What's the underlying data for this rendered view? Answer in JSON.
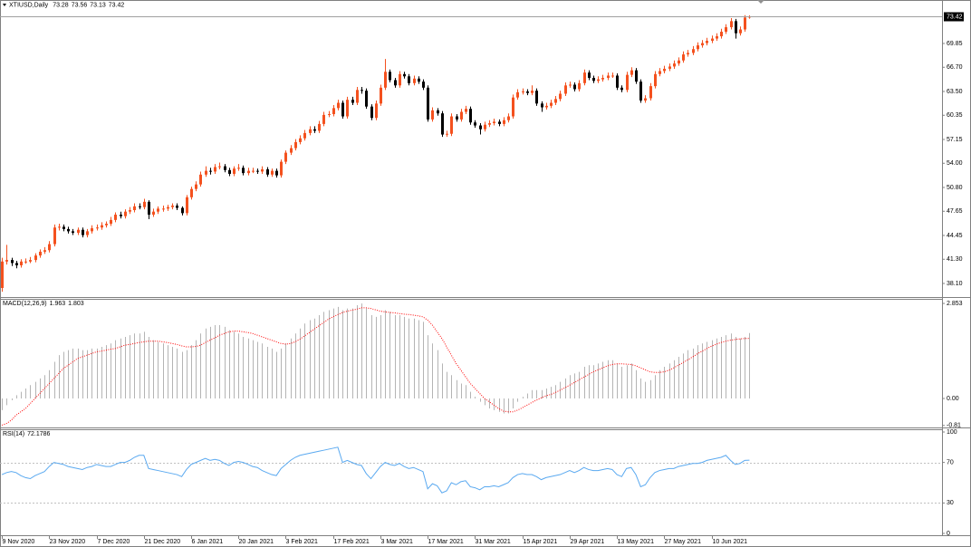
{
  "chart_data": [
    {
      "type": "candlestick",
      "title": "XTIUSD,Daily",
      "up_color": "#f4511e",
      "down_color": "#000000",
      "xlim": [
        -0.4,
        198.7
      ],
      "xticks": [
        {
          "value": 0,
          "label": "9 Nov 2020"
        },
        {
          "value": 10,
          "label": "23 Nov 2020"
        },
        {
          "value": 20,
          "label": "7 Dec 2020"
        },
        {
          "value": 30,
          "label": "21 Dec 2020"
        },
        {
          "value": 40,
          "label": "6 Jan 2021"
        },
        {
          "value": 50,
          "label": "20 Jan 2021"
        },
        {
          "value": 60,
          "label": "3 Feb 2021"
        },
        {
          "value": 70,
          "label": "17 Feb 2021"
        },
        {
          "value": 80,
          "label": "3 Mar 2021"
        },
        {
          "value": 90,
          "label": "17 Mar 2021"
        },
        {
          "value": 100,
          "label": "31 Mar 2021"
        },
        {
          "value": 110,
          "label": "15 Apr 2021"
        },
        {
          "value": 120,
          "label": "29 Apr 2021"
        },
        {
          "value": 130,
          "label": "13 May 2021"
        },
        {
          "value": 140,
          "label": "27 May 2021"
        },
        {
          "value": 150,
          "label": "10 Jun 2021"
        }
      ],
      "ylim": [
        36.3,
        75.6
      ],
      "yticks": [
        {
          "value": 38.1,
          "label": "38.10"
        },
        {
          "value": 41.3,
          "label": "41.30"
        },
        44.45,
        47.65,
        {
          "value": 50.8,
          "label": "50.80"
        },
        {
          "value": 54,
          "label": "54.00"
        },
        57.15,
        60.35,
        {
          "value": 63.5,
          "label": "63.50"
        },
        {
          "value": 66.7,
          "label": "66.70"
        },
        69.85
      ],
      "open": [
        37.5,
        41.0,
        41.2,
        40.8,
        40.5,
        41.0,
        41.0,
        41.2,
        41.8,
        42.3,
        42.5,
        43.3,
        45.5,
        45.6,
        45.3,
        45.0,
        44.8,
        45.2,
        44.5,
        45.0,
        45.4,
        45.5,
        45.8,
        46.0,
        46.5,
        47.2,
        47.0,
        47.6,
        47.8,
        48.3,
        48.2,
        48.9,
        47.2,
        47.6,
        48.0,
        48.0,
        48.2,
        48.4,
        48.1,
        47.4,
        49.5,
        50.6,
        51.2,
        52.5,
        53.0,
        52.9,
        53.5,
        53.6,
        53.1,
        52.6,
        53.3,
        53.4,
        52.7,
        53.0,
        53.0,
        52.9,
        53.2,
        52.5,
        53.0,
        52.4,
        54.2,
        55.4,
        56.0,
        56.8,
        57.3,
        58.0,
        58.5,
        58.3,
        59.2,
        60.4,
        60.5,
        61.3,
        62.0,
        60.2,
        62.4,
        62.0,
        63.7,
        63.6,
        61.5,
        60.0,
        61.9,
        64.0,
        66.1,
        65.0,
        64.3,
        65.8,
        65.5,
        64.6,
        65.2,
        64.8,
        64.0,
        59.8,
        61.0,
        60.6,
        57.8,
        57.9,
        60.2,
        59.8,
        60.8,
        61.2,
        59.4,
        59.0,
        58.5,
        59.1,
        59.3,
        59.5,
        59.2,
        59.7,
        60.2,
        62.7,
        63.4,
        63.5,
        63.3,
        63.6,
        61.9,
        61.4,
        61.6,
        62.0,
        62.5,
        63.2,
        64.3,
        64.4,
        63.8,
        64.6,
        66.0,
        65.3,
        64.9,
        65.1,
        65.3,
        65.6,
        65.6,
        64.0,
        63.7,
        65.7,
        66.3,
        64.8,
        62.3,
        62.6,
        64.2,
        65.8,
        66.2,
        66.5,
        66.8,
        67.2,
        67.6,
        68.4,
        68.6,
        69.1,
        69.6,
        69.9,
        70.2,
        70.5,
        70.8,
        71.4,
        72.0,
        72.8,
        71.2,
        71.7,
        73.28
      ],
      "high": [
        41.5,
        43.2,
        41.5,
        41.1,
        41.3,
        41.4,
        41.6,
        42.1,
        42.6,
        42.9,
        43.7,
        45.9,
        46.0,
        45.9,
        45.6,
        45.3,
        45.5,
        45.5,
        45.3,
        45.8,
        45.9,
        46.2,
        46.3,
        46.9,
        47.5,
        47.6,
        47.9,
        48.2,
        48.7,
        48.7,
        49.3,
        49.1,
        48.0,
        48.3,
        48.4,
        48.5,
        48.7,
        48.7,
        48.3,
        49.8,
        50.9,
        51.6,
        52.9,
        53.6,
        53.4,
        53.9,
        54.1,
        53.9,
        53.4,
        53.6,
        53.9,
        53.7,
        53.4,
        53.4,
        53.3,
        53.6,
        53.5,
        53.3,
        53.3,
        54.5,
        55.7,
        56.4,
        57.2,
        57.7,
        58.4,
        58.9,
        58.9,
        59.6,
        60.8,
        60.9,
        61.7,
        62.4,
        62.3,
        62.8,
        62.8,
        64.1,
        64.1,
        63.9,
        61.8,
        62.3,
        64.4,
        67.8,
        66.4,
        65.3,
        66.2,
        66.1,
        65.8,
        65.6,
        65.5,
        65.1,
        64.3,
        61.4,
        61.3,
        60.9,
        58.3,
        60.6,
        60.5,
        61.2,
        61.6,
        61.5,
        59.7,
        59.3,
        59.5,
        59.7,
        59.9,
        59.8,
        60.1,
        60.6,
        63.1,
        63.8,
        63.9,
        63.8,
        64.3,
        63.9,
        62.2,
        62.0,
        62.4,
        62.9,
        63.6,
        64.7,
        64.8,
        64.7,
        65.0,
        66.4,
        66.3,
        65.6,
        65.5,
        65.7,
        66.0,
        66.0,
        65.9,
        64.3,
        66.1,
        66.7,
        66.6,
        65.1,
        63.0,
        64.6,
        66.2,
        66.6,
        66.9,
        67.2,
        67.6,
        68.0,
        68.8,
        69.0,
        69.5,
        70.0,
        70.3,
        70.6,
        70.9,
        71.2,
        71.8,
        72.4,
        73.2,
        73.1,
        72.1,
        73.6,
        73.56
      ],
      "low": [
        37.0,
        40.6,
        40.4,
        40.1,
        40.2,
        40.7,
        40.8,
        40.9,
        41.5,
        42.0,
        42.2,
        43.0,
        45.1,
        45.0,
        44.7,
        44.5,
        44.5,
        44.2,
        44.2,
        44.7,
        45.1,
        45.2,
        45.5,
        45.7,
        46.2,
        46.7,
        46.7,
        47.3,
        47.5,
        47.9,
        47.9,
        46.6,
        46.9,
        47.3,
        47.6,
        47.7,
        47.9,
        47.8,
        47.1,
        47.1,
        49.2,
        50.3,
        50.9,
        52.2,
        52.5,
        52.6,
        53.2,
        52.8,
        52.3,
        52.3,
        53.0,
        52.4,
        52.4,
        52.7,
        52.6,
        52.6,
        52.2,
        52.2,
        52.1,
        52.1,
        53.9,
        55.1,
        55.7,
        56.5,
        57.0,
        57.7,
        58.0,
        58.0,
        58.9,
        60.1,
        60.2,
        61.0,
        59.9,
        59.9,
        61.7,
        61.7,
        63.2,
        61.2,
        59.7,
        59.7,
        61.6,
        63.7,
        64.7,
        64.0,
        64.0,
        65.2,
        64.3,
        64.3,
        64.5,
        63.7,
        59.5,
        59.5,
        60.3,
        57.5,
        57.5,
        57.6,
        59.5,
        59.5,
        60.5,
        59.1,
        58.7,
        57.8,
        58.2,
        58.8,
        59.0,
        58.9,
        58.9,
        59.4,
        59.9,
        62.4,
        63.1,
        63.0,
        63.0,
        61.6,
        60.8,
        61.1,
        61.3,
        61.7,
        62.2,
        62.9,
        64.0,
        63.5,
        63.5,
        64.3,
        65.0,
        64.6,
        64.6,
        64.8,
        65.0,
        65.3,
        63.7,
        63.4,
        63.4,
        65.4,
        64.5,
        62.0,
        62.0,
        62.3,
        63.9,
        65.5,
        65.9,
        66.2,
        66.5,
        66.9,
        67.3,
        68.1,
        68.3,
        68.8,
        69.3,
        69.6,
        69.9,
        70.2,
        70.5,
        71.1,
        71.7,
        70.5,
        70.9,
        71.4,
        73.13
      ],
      "close": [
        41.0,
        41.2,
        40.8,
        40.5,
        41.0,
        41.0,
        41.2,
        41.8,
        42.3,
        42.5,
        43.3,
        45.5,
        45.6,
        45.3,
        45.0,
        44.8,
        45.2,
        44.5,
        45.0,
        45.4,
        45.5,
        45.8,
        46.0,
        46.5,
        47.2,
        47.0,
        47.6,
        47.8,
        48.3,
        48.2,
        48.9,
        47.2,
        47.6,
        48.0,
        48.0,
        48.2,
        48.4,
        48.1,
        47.4,
        49.5,
        50.6,
        51.2,
        52.5,
        53.0,
        52.9,
        53.5,
        53.6,
        53.1,
        52.6,
        53.3,
        53.4,
        52.7,
        53.0,
        53.0,
        52.9,
        53.2,
        52.5,
        53.0,
        52.4,
        54.2,
        55.4,
        56.0,
        56.8,
        57.3,
        58.0,
        58.5,
        58.3,
        59.2,
        60.4,
        60.5,
        61.3,
        62.0,
        60.2,
        62.4,
        62.0,
        63.7,
        63.6,
        61.5,
        60.0,
        61.9,
        64.0,
        66.1,
        65.0,
        64.3,
        65.8,
        65.5,
        64.6,
        65.2,
        64.8,
        64.0,
        59.8,
        61.0,
        60.6,
        57.8,
        57.9,
        60.2,
        59.8,
        60.8,
        61.2,
        59.4,
        59.0,
        58.5,
        59.1,
        59.3,
        59.5,
        59.2,
        59.7,
        60.2,
        62.7,
        63.4,
        63.5,
        63.3,
        63.6,
        61.9,
        61.4,
        61.6,
        62.0,
        62.5,
        63.2,
        64.3,
        64.4,
        63.8,
        64.6,
        66.0,
        65.3,
        64.9,
        65.1,
        65.3,
        65.6,
        65.6,
        64.0,
        63.7,
        65.7,
        66.3,
        64.8,
        62.3,
        62.6,
        64.2,
        65.8,
        66.2,
        66.5,
        66.8,
        67.2,
        67.6,
        68.4,
        68.6,
        69.1,
        69.6,
        69.9,
        70.2,
        70.5,
        70.8,
        71.4,
        72.0,
        72.8,
        71.2,
        71.7,
        73.28,
        73.42
      ]
    },
    {
      "type": "macd",
      "title": "MACD(12,26,9)",
      "ylim": [
        -0.87,
        2.99
      ],
      "yticks": [
        2.853,
        {
          "value": 0,
          "label": "0.00"
        },
        -0.81
      ],
      "histogram": {
        "color": "#b4b4b4",
        "values": [
          -0.35,
          -0.2,
          -0.05,
          0.1,
          0.2,
          0.3,
          0.4,
          0.5,
          0.6,
          0.7,
          0.85,
          1.1,
          1.3,
          1.4,
          1.45,
          1.5,
          1.5,
          1.45,
          1.45,
          1.5,
          1.5,
          1.55,
          1.6,
          1.65,
          1.75,
          1.8,
          1.85,
          1.9,
          1.95,
          1.95,
          2.0,
          1.85,
          1.75,
          1.7,
          1.65,
          1.6,
          1.55,
          1.5,
          1.4,
          1.45,
          1.6,
          1.75,
          1.95,
          2.1,
          2.15,
          2.2,
          2.2,
          2.15,
          2.05,
          2.0,
          1.95,
          1.85,
          1.8,
          1.75,
          1.7,
          1.65,
          1.55,
          1.5,
          1.4,
          1.5,
          1.65,
          1.8,
          1.95,
          2.1,
          2.25,
          2.35,
          2.4,
          2.5,
          2.6,
          2.65,
          2.7,
          2.75,
          2.65,
          2.7,
          2.7,
          2.8,
          2.85,
          2.7,
          2.5,
          2.45,
          2.5,
          2.65,
          2.6,
          2.5,
          2.5,
          2.45,
          2.4,
          2.4,
          2.35,
          2.3,
          1.9,
          1.65,
          1.45,
          1.05,
          0.8,
          0.7,
          0.55,
          0.45,
          0.4,
          0.2,
          0.05,
          -0.1,
          -0.2,
          -0.3,
          -0.35,
          -0.4,
          -0.45,
          -0.45,
          -0.3,
          -0.1,
          0.05,
          0.15,
          0.25,
          0.25,
          0.25,
          0.3,
          0.35,
          0.4,
          0.5,
          0.6,
          0.7,
          0.75,
          0.8,
          0.95,
          1.0,
          1.0,
          1.05,
          1.1,
          1.15,
          1.15,
          1.05,
          0.95,
          1.0,
          1.05,
          0.85,
          0.6,
          0.5,
          0.55,
          0.7,
          0.85,
          0.95,
          1.05,
          1.15,
          1.25,
          1.35,
          1.45,
          1.5,
          1.6,
          1.65,
          1.7,
          1.75,
          1.8,
          1.85,
          1.9,
          1.95,
          1.85,
          1.8,
          1.85,
          1.963
        ]
      },
      "signal": {
        "color": "#ff0000",
        "values": [
          -0.8,
          -0.75,
          -0.65,
          -0.5,
          -0.4,
          -0.3,
          -0.15,
          0.0,
          0.15,
          0.3,
          0.45,
          0.6,
          0.75,
          0.9,
          1.0,
          1.1,
          1.2,
          1.25,
          1.3,
          1.35,
          1.4,
          1.42,
          1.45,
          1.48,
          1.5,
          1.55,
          1.6,
          1.62,
          1.65,
          1.68,
          1.7,
          1.72,
          1.72,
          1.72,
          1.7,
          1.68,
          1.65,
          1.62,
          1.58,
          1.55,
          1.55,
          1.56,
          1.6,
          1.68,
          1.75,
          1.82,
          1.9,
          1.95,
          2.0,
          2.02,
          2.02,
          2.0,
          1.98,
          1.95,
          1.9,
          1.85,
          1.8,
          1.75,
          1.7,
          1.65,
          1.63,
          1.65,
          1.7,
          1.78,
          1.88,
          1.98,
          2.08,
          2.18,
          2.28,
          2.38,
          2.45,
          2.52,
          2.58,
          2.62,
          2.65,
          2.68,
          2.72,
          2.72,
          2.7,
          2.66,
          2.62,
          2.6,
          2.58,
          2.57,
          2.55,
          2.53,
          2.52,
          2.5,
          2.48,
          2.45,
          2.35,
          2.2,
          2.0,
          1.8,
          1.55,
          1.3,
          1.05,
          0.85,
          0.65,
          0.45,
          0.3,
          0.15,
          0.0,
          -0.1,
          -0.2,
          -0.3,
          -0.38,
          -0.4,
          -0.4,
          -0.35,
          -0.28,
          -0.2,
          -0.12,
          -0.05,
          0.02,
          0.08,
          0.12,
          0.18,
          0.25,
          0.32,
          0.4,
          0.48,
          0.56,
          0.64,
          0.72,
          0.8,
          0.86,
          0.92,
          0.98,
          1.02,
          1.04,
          1.04,
          1.03,
          1.02,
          0.98,
          0.92,
          0.86,
          0.8,
          0.78,
          0.78,
          0.8,
          0.85,
          0.92,
          1.0,
          1.08,
          1.16,
          1.25,
          1.34,
          1.42,
          1.5,
          1.57,
          1.63,
          1.68,
          1.72,
          1.75,
          1.77,
          1.79,
          1.8,
          1.803
        ]
      }
    },
    {
      "type": "line",
      "title": "RSI(14)",
      "color": "#5aa9f0",
      "ylim": [
        -1.8,
        102.7
      ],
      "yticks": [
        100,
        70,
        30,
        0
      ],
      "levels": [
        70,
        30
      ],
      "values": [
        58,
        60,
        61,
        60,
        57,
        55,
        54,
        57,
        59,
        61,
        66,
        70,
        69,
        68,
        66,
        65,
        64,
        63,
        65,
        66,
        68,
        67,
        66,
        66,
        68,
        70,
        70,
        72,
        75,
        77,
        77,
        64,
        63,
        62,
        61,
        60,
        59,
        58,
        56,
        63,
        68,
        70,
        72,
        74,
        72,
        73,
        72,
        69,
        67,
        70,
        71,
        70,
        68,
        66,
        65,
        62,
        60,
        58,
        57,
        64,
        68,
        72,
        75,
        77,
        78,
        79,
        80,
        81,
        82,
        83,
        84,
        85,
        70,
        72,
        70,
        68,
        67,
        59,
        54,
        60,
        66,
        70,
        68,
        67,
        69,
        66,
        64,
        65,
        63,
        61,
        44,
        49,
        47,
        40,
        42,
        50,
        48,
        51,
        52,
        46,
        45,
        43,
        46,
        46,
        47,
        46,
        48,
        50,
        55,
        58,
        59,
        58,
        58,
        56,
        53,
        55,
        56,
        57,
        58,
        60,
        62,
        60,
        62,
        65,
        63,
        62,
        62,
        63,
        64,
        63,
        58,
        56,
        64,
        65,
        58,
        46,
        48,
        55,
        60,
        62,
        63,
        64,
        64,
        66,
        67,
        68,
        69,
        69,
        70,
        72,
        73,
        74,
        75,
        77,
        72,
        68,
        69,
        72,
        72.1786
      ]
    }
  ]
}
